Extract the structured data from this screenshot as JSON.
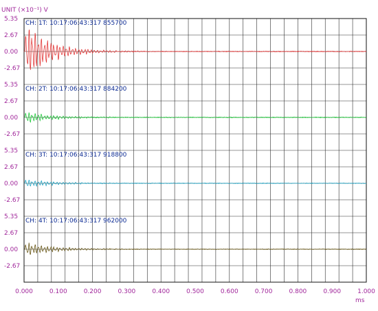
{
  "unit_label": "UNIT (×10⁻¹) V",
  "x_unit": "ms",
  "chart_data": {
    "type": "line",
    "title": "",
    "xlabel": "ms",
    "ylabel": "UNIT (×10⁻¹) V",
    "xlim": [
      0.0,
      1.0
    ],
    "x_ticks": [
      "0.000",
      "0.100",
      "0.200",
      "0.300",
      "0.400",
      "0.500",
      "0.600",
      "0.700",
      "0.800",
      "0.900",
      "1.000"
    ],
    "y_ticks": [
      "5.35",
      "2.67",
      "0.00",
      "-2.67"
    ],
    "grid": true,
    "channels": [
      {
        "label": "CH:  1T:  10:17:06:43:317 855700",
        "color": "#e23a3a",
        "amplitude": 4.8,
        "decay": 0.07,
        "noise": 0.12
      },
      {
        "label": "CH:  2T:  10:17:06:43:317 884200",
        "color": "#1fc73a",
        "amplitude": 0.9,
        "decay": 0.08,
        "noise": 0.12
      },
      {
        "label": "CH:  3T:  10:17:06:43:317 918800",
        "color": "#1fa3c3",
        "amplitude": 0.7,
        "decay": 0.08,
        "noise": 0.1
      },
      {
        "label": "CH:  4T:  10:17:06:43:317 962000",
        "color": "#6b5a1a",
        "amplitude": 1.1,
        "decay": 0.08,
        "noise": 0.1
      }
    ]
  }
}
